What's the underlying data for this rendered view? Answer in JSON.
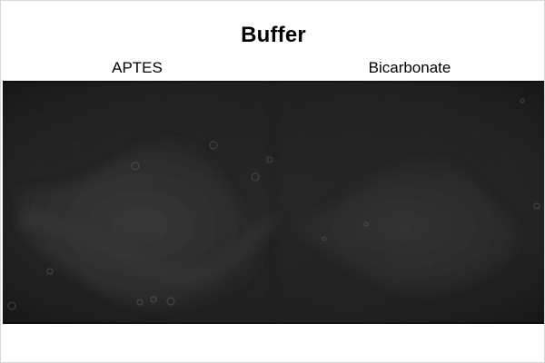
{
  "figure": {
    "title": "Buffer",
    "panels": [
      {
        "label": "APTES"
      },
      {
        "label": "Bicarbonate"
      }
    ]
  },
  "colors": {
    "background": "#ffffff",
    "micrograph_dark": "#262626",
    "micrograph_glow": "#3a3a3a"
  }
}
